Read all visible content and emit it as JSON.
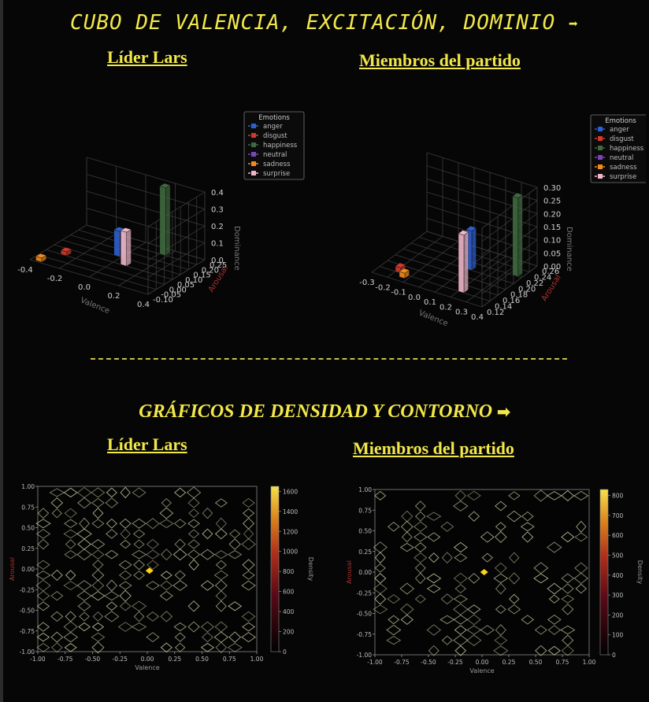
{
  "headings": {
    "cube_title": "CUBO DE VALENCIA, EXCITACIÓN, DOMINIO",
    "arrow": "➡",
    "density_title": "GRÁFICOS DE DENSIDAD Y CONTORNO",
    "leader": "Líder Lars",
    "members": "Miembros del partido"
  },
  "colors": {
    "heading": "#f2e84a",
    "anger": "#2f5fd0",
    "disgust": "#d03a2a",
    "happiness": "#3f6a3f",
    "neutral": "#7a45b8",
    "sadness": "#f28b1e",
    "surprise": "#f0b7c9",
    "marker": "#ffd21a"
  },
  "chart_data": [
    {
      "type": "bar3d",
      "panel": "Líder Lars",
      "xlabel": "Valence",
      "ylabel": "Arousal",
      "zlabel": "Dominance",
      "x_ticks": [
        "-0.4",
        "-0.2",
        "0.0",
        "0.2",
        "0.4"
      ],
      "y_ticks": [
        "-0.10",
        "-0.05",
        "0.00",
        "0.05",
        "0.10",
        "0.15",
        "0.20",
        "0.25"
      ],
      "z_ticks": [
        "0.0",
        "0.1",
        "0.2",
        "0.3",
        "0.4"
      ],
      "legend_title": "Emotions",
      "legend": [
        "anger",
        "disgust",
        "happiness",
        "neutral",
        "sadness",
        "surprise"
      ],
      "bars": [
        {
          "emotion": "anger",
          "valence": -0.05,
          "arousal": 0.1,
          "dominance": 0.15
        },
        {
          "emotion": "disgust",
          "valence": -0.3,
          "arousal": 0.0,
          "dominance": 0.0
        },
        {
          "emotion": "happiness",
          "valence": 0.15,
          "arousal": 0.2,
          "dominance": 0.4
        },
        {
          "emotion": "sadness",
          "valence": -0.4,
          "arousal": -0.1,
          "dominance": 0.0
        },
        {
          "emotion": "surprise",
          "valence": 0.05,
          "arousal": 0.05,
          "dominance": 0.2
        }
      ]
    },
    {
      "type": "bar3d",
      "panel": "Miembros del partido",
      "xlabel": "Valence",
      "ylabel": "Arousal",
      "zlabel": "Dominance",
      "x_ticks": [
        "-0.3",
        "-0.2",
        "-0.1",
        "0.0",
        "0.1",
        "0.2",
        "0.3",
        "0.4"
      ],
      "y_ticks": [
        "0.12",
        "0.14",
        "0.16",
        "0.18",
        "0.20",
        "0.22",
        "0.24",
        "0.26"
      ],
      "z_ticks": [
        "0.00",
        "0.05",
        "0.10",
        "0.15",
        "0.20",
        "0.25",
        "0.30"
      ],
      "legend_title": "Emotions",
      "legend": [
        "anger",
        "disgust",
        "happiness",
        "neutral",
        "sadness",
        "surprise"
      ],
      "bars": [
        {
          "emotion": "anger",
          "valence": 0.1,
          "arousal": 0.2,
          "dominance": 0.15
        },
        {
          "emotion": "disgust",
          "valence": -0.2,
          "arousal": 0.14,
          "dominance": 0.02
        },
        {
          "emotion": "happiness",
          "valence": 0.35,
          "arousal": 0.22,
          "dominance": 0.3
        },
        {
          "emotion": "sadness",
          "valence": -0.15,
          "arousal": 0.13,
          "dominance": 0.02
        },
        {
          "emotion": "surprise",
          "valence": 0.2,
          "arousal": 0.14,
          "dominance": 0.22
        }
      ]
    },
    {
      "type": "contour",
      "panel": "Líder Lars",
      "xlabel": "Valence",
      "ylabel": "Arousal",
      "colorbar_label": "Density",
      "xlim": [
        -1,
        1
      ],
      "ylim": [
        -1,
        1
      ],
      "x_ticks": [
        "-1.00",
        "-0.75",
        "-0.50",
        "-0.25",
        "0.00",
        "0.25",
        "0.50",
        "0.75",
        "1.00"
      ],
      "y_ticks": [
        "-1.00",
        "-0.75",
        "-0.50",
        "-0.25",
        "0.00",
        "0.25",
        "0.50",
        "0.75",
        "1.00"
      ],
      "colorbar_ticks": [
        "0",
        "200",
        "400",
        "600",
        "800",
        "1000",
        "1200",
        "1400",
        "1600"
      ],
      "colorbar_max": 1650,
      "peak": {
        "x": 0.02,
        "y": -0.02
      },
      "seed": 7,
      "density": 0.62
    },
    {
      "type": "contour",
      "panel": "Miembros del partido",
      "xlabel": "Valence",
      "ylabel": "Arousal",
      "colorbar_label": "Density",
      "xlim": [
        -1,
        1
      ],
      "ylim": [
        -1,
        1
      ],
      "x_ticks": [
        "-1.00",
        "-0.75",
        "-0.50",
        "-0.25",
        "0.00",
        "0.25",
        "0.50",
        "0.75",
        "1.00"
      ],
      "y_ticks": [
        "-1.00",
        "-0.75",
        "-0.50",
        "-0.25",
        "0.00",
        "0.25",
        "0.50",
        "0.75",
        "1.00"
      ],
      "colorbar_ticks": [
        "0",
        "100",
        "200",
        "300",
        "400",
        "500",
        "600",
        "700",
        "800"
      ],
      "colorbar_max": 830,
      "peak": {
        "x": 0.02,
        "y": 0.0
      },
      "seed": 13,
      "density": 0.42
    }
  ]
}
